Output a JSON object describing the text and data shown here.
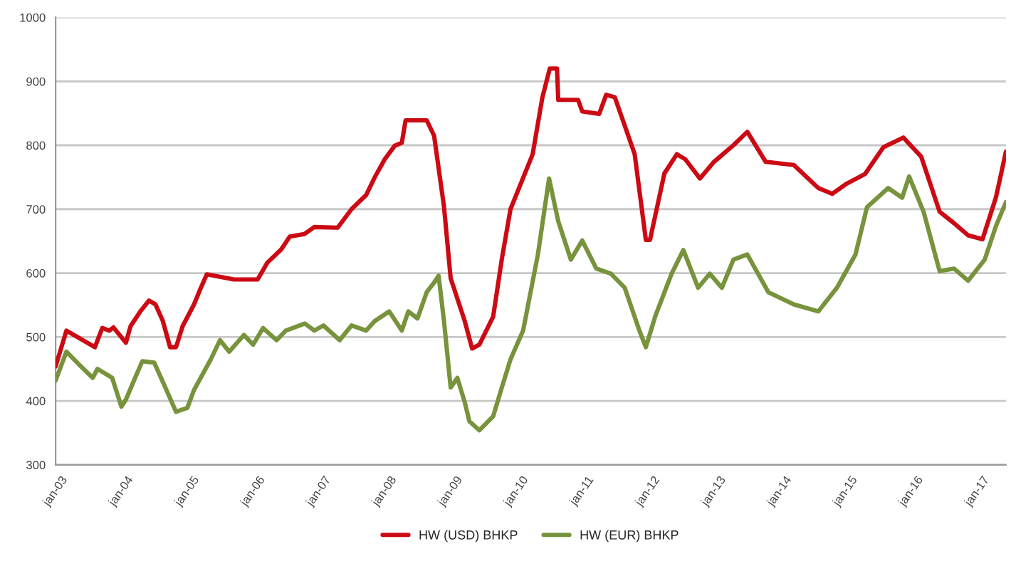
{
  "chart_data": {
    "type": "line",
    "xlim": [
      "2003-01-01",
      "2017-06-09"
    ],
    "ylim": [
      300,
      1000
    ],
    "xticks": [
      {
        "value": "2003-01-01",
        "label": "jan-03"
      },
      {
        "value": "2004-01-01",
        "label": "jan-04"
      },
      {
        "value": "2005-01-01",
        "label": "jan-05"
      },
      {
        "value": "2006-01-01",
        "label": "jan-06"
      },
      {
        "value": "2007-01-01",
        "label": "jan-07"
      },
      {
        "value": "2008-01-01",
        "label": "jan-08"
      },
      {
        "value": "2009-01-01",
        "label": "jan-09"
      },
      {
        "value": "2010-01-01",
        "label": "jan-10"
      },
      {
        "value": "2011-01-01",
        "label": "jan-11"
      },
      {
        "value": "2012-01-01",
        "label": "jan-12"
      },
      {
        "value": "2013-01-01",
        "label": "jan-13"
      },
      {
        "value": "2014-01-01",
        "label": "jan-14"
      },
      {
        "value": "2015-01-01",
        "label": "jan-15"
      },
      {
        "value": "2016-01-01",
        "label": "jan-16"
      },
      {
        "value": "2017-01-01",
        "label": "jan-17"
      }
    ],
    "yticks": [
      300,
      400,
      500,
      600,
      700,
      800,
      900,
      1000
    ],
    "grid": "y",
    "legend": "bottom",
    "marker": "none",
    "line_style": "solid",
    "series": [
      {
        "name": "HW (USD) BHKP",
        "color": "#cc0a14",
        "x": [
          "2003-01-01",
          "2003-03-02",
          "2003-08-07",
          "2003-09-17",
          "2003-10-26",
          "2003-11-18",
          "2004-01-26",
          "2004-02-21",
          "2004-04-15",
          "2004-06-02",
          "2004-07-08",
          "2004-08-18",
          "2004-09-27",
          "2004-10-30",
          "2004-12-06",
          "2005-02-07",
          "2005-03-17",
          "2005-04-19",
          "2005-09-17",
          "2005-11-07",
          "2006-01-26",
          "2006-03-20",
          "2006-06-06",
          "2006-07-23",
          "2006-10-12",
          "2006-12-06",
          "2007-04-15",
          "2007-07-01",
          "2007-09-20",
          "2007-11-07",
          "2008-01-01",
          "2008-02-25",
          "2008-04-05",
          "2008-04-26",
          "2008-08-21",
          "2008-10-01",
          "2008-11-25",
          "2009-01-01",
          "2009-03-20",
          "2009-04-30",
          "2009-06-09",
          "2009-08-25",
          "2009-10-12",
          "2009-11-29",
          "2010-04-01",
          "2010-05-25",
          "2010-07-05",
          "2010-08-14",
          "2010-08-21",
          "2010-12-09",
          "2011-01-01",
          "2011-04-05",
          "2011-05-14",
          "2011-07-01",
          "2011-08-07",
          "2011-10-19",
          "2011-12-20",
          "2012-01-12",
          "2012-04-01",
          "2012-06-09",
          "2012-07-26",
          "2012-10-15",
          "2013-01-01",
          "2013-04-19",
          "2013-07-05",
          "2013-10-15",
          "2014-03-20",
          "2014-08-03",
          "2014-10-19",
          "2015-01-08",
          "2015-04-19",
          "2015-07-30",
          "2015-11-18",
          "2016-02-25",
          "2016-06-06",
          "2016-08-25",
          "2016-11-11",
          "2017-01-30",
          "2017-04-15",
          "2017-06-09"
        ],
        "values": [
          454,
          510,
          484,
          514,
          510,
          515,
          491,
          517,
          540,
          557,
          551,
          525,
          484,
          484,
          517,
          551,
          577,
          598,
          590,
          590,
          590,
          616,
          637,
          657,
          661,
          672,
          671,
          700,
          722,
          750,
          778,
          799,
          804,
          839,
          839,
          815,
          704,
          592,
          525,
          482,
          488,
          532,
          622,
          700,
          786,
          875,
          920,
          920,
          871,
          871,
          853,
          849,
          879,
          875,
          845,
          786,
          652,
          652,
          756,
          786,
          778,
          748,
          774,
          800,
          821,
          774,
          769,
          733,
          724,
          740,
          755,
          797,
          812,
          782,
          696,
          678,
          659,
          653,
          719,
          790
        ]
      },
      {
        "name": "HW (EUR) BHKP",
        "color": "#77933c",
        "x": [
          "2003-01-01",
          "2003-03-02",
          "2003-05-07",
          "2003-07-26",
          "2003-08-21",
          "2003-11-11",
          "2004-01-01",
          "2004-01-26",
          "2004-03-17",
          "2004-04-26",
          "2004-07-01",
          "2004-08-21",
          "2004-10-30",
          "2005-01-01",
          "2005-02-07",
          "2005-05-11",
          "2005-07-01",
          "2005-08-21",
          "2005-11-11",
          "2006-01-01",
          "2006-02-25",
          "2006-05-11",
          "2006-07-01",
          "2006-10-15",
          "2006-12-06",
          "2007-01-26",
          "2007-04-26",
          "2007-07-01",
          "2007-09-20",
          "2007-11-07",
          "2008-01-26",
          "2008-04-05",
          "2008-05-11",
          "2008-07-01",
          "2008-08-21",
          "2008-10-01",
          "2008-10-26",
          "2008-11-25",
          "2009-01-01",
          "2009-02-07",
          "2009-03-20",
          "2009-04-15",
          "2009-06-09",
          "2009-08-25",
          "2009-10-12",
          "2009-11-29",
          "2010-02-07",
          "2010-04-30",
          "2010-07-01",
          "2010-08-21",
          "2010-10-30",
          "2011-01-01",
          "2011-03-20",
          "2011-06-09",
          "2011-08-25",
          "2011-11-14",
          "2011-12-20",
          "2012-02-11",
          "2012-05-11",
          "2012-07-15",
          "2012-10-05",
          "2012-12-09",
          "2013-02-14",
          "2013-04-19",
          "2013-07-05",
          "2013-10-30",
          "2014-03-20",
          "2014-08-03",
          "2014-11-14",
          "2015-02-25",
          "2015-04-30",
          "2015-08-25",
          "2015-11-11",
          "2015-12-20",
          "2016-03-09",
          "2016-06-06",
          "2016-08-25",
          "2016-11-11",
          "2017-02-11",
          "2017-04-15",
          "2017-06-09"
        ],
        "values": [
          432,
          477,
          458,
          436,
          450,
          436,
          391,
          402,
          436,
          462,
          460,
          428,
          383,
          389,
          417,
          465,
          495,
          477,
          503,
          488,
          514,
          495,
          510,
          521,
          510,
          518,
          495,
          518,
          510,
          525,
          540,
          510,
          540,
          529,
          570,
          585,
          596,
          525,
          421,
          436,
          398,
          368,
          354,
          376,
          421,
          465,
          510,
          629,
          748,
          681,
          621,
          651,
          607,
          599,
          577,
          510,
          484,
          533,
          599,
          636,
          577,
          599,
          577,
          621,
          629,
          570,
          551,
          540,
          577,
          629,
          703,
          733,
          718,
          751,
          696,
          603,
          607,
          588,
          621,
          674,
          711
        ]
      }
    ]
  }
}
